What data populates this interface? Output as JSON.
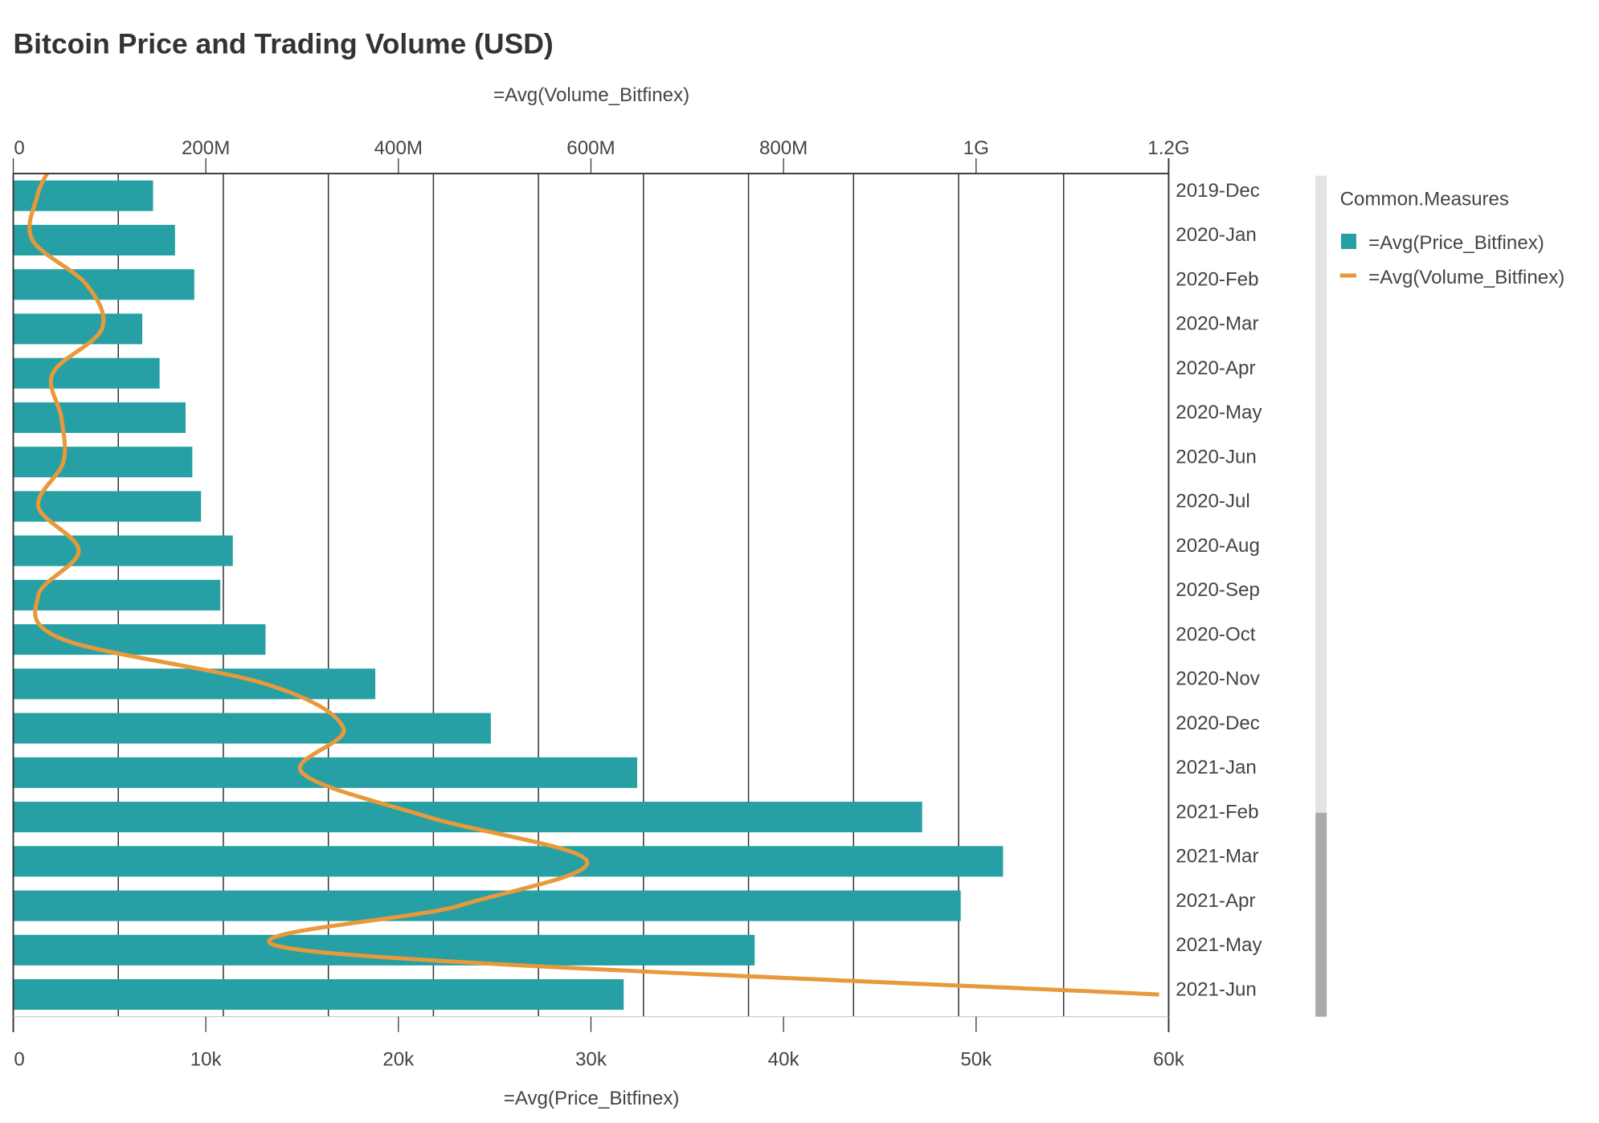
{
  "chart_data": {
    "type": "bar",
    "title": "Bitcoin Price and Trading Volume (USD)",
    "orientation": "horizontal",
    "categories": [
      "2019-Dec",
      "2020-Jan",
      "2020-Feb",
      "2020-Mar",
      "2020-Apr",
      "2020-May",
      "2020-Jun",
      "2020-Jul",
      "2020-Aug",
      "2020-Sep",
      "2020-Oct",
      "2020-Nov",
      "2020-Dec",
      "2021-Jan",
      "2021-Feb",
      "2021-Mar",
      "2021-Apr",
      "2021-May",
      "2021-Jun"
    ],
    "series": [
      {
        "name": "=Avg(Price_Bitfinex)",
        "type": "bar",
        "color": "#26a0a4",
        "axis": "bottom",
        "values": [
          7260,
          8400,
          9400,
          6700,
          7600,
          8950,
          9300,
          9750,
          11400,
          10750,
          13100,
          18800,
          24800,
          32400,
          47200,
          51400,
          49200,
          38500,
          31700
        ]
      },
      {
        "name": "=Avg(Volume_Bitfinex)",
        "type": "line",
        "color": "#e8993a",
        "axis": "top",
        "values": [
          25,
          20,
          76,
          92,
          41,
          50,
          52,
          26,
          68,
          26,
          52,
          262,
          343,
          300,
          431,
          596,
          463,
          300,
          1190
        ]
      }
    ],
    "bottom_axis": {
      "label": "=Avg(Price_Bitfinex)",
      "range": [
        0,
        60000
      ],
      "ticks": [
        "0",
        "10k",
        "20k",
        "30k",
        "40k",
        "50k",
        "60k"
      ]
    },
    "top_axis": {
      "label": "=Avg(Volume_Bitfinex)",
      "range_millions": [
        0,
        1200
      ],
      "ticks": [
        "0",
        "200M",
        "400M",
        "600M",
        "800M",
        "1G",
        "1.2G"
      ]
    },
    "legend": {
      "title": "Common.Measures",
      "placement": "right"
    },
    "grid": true
  }
}
